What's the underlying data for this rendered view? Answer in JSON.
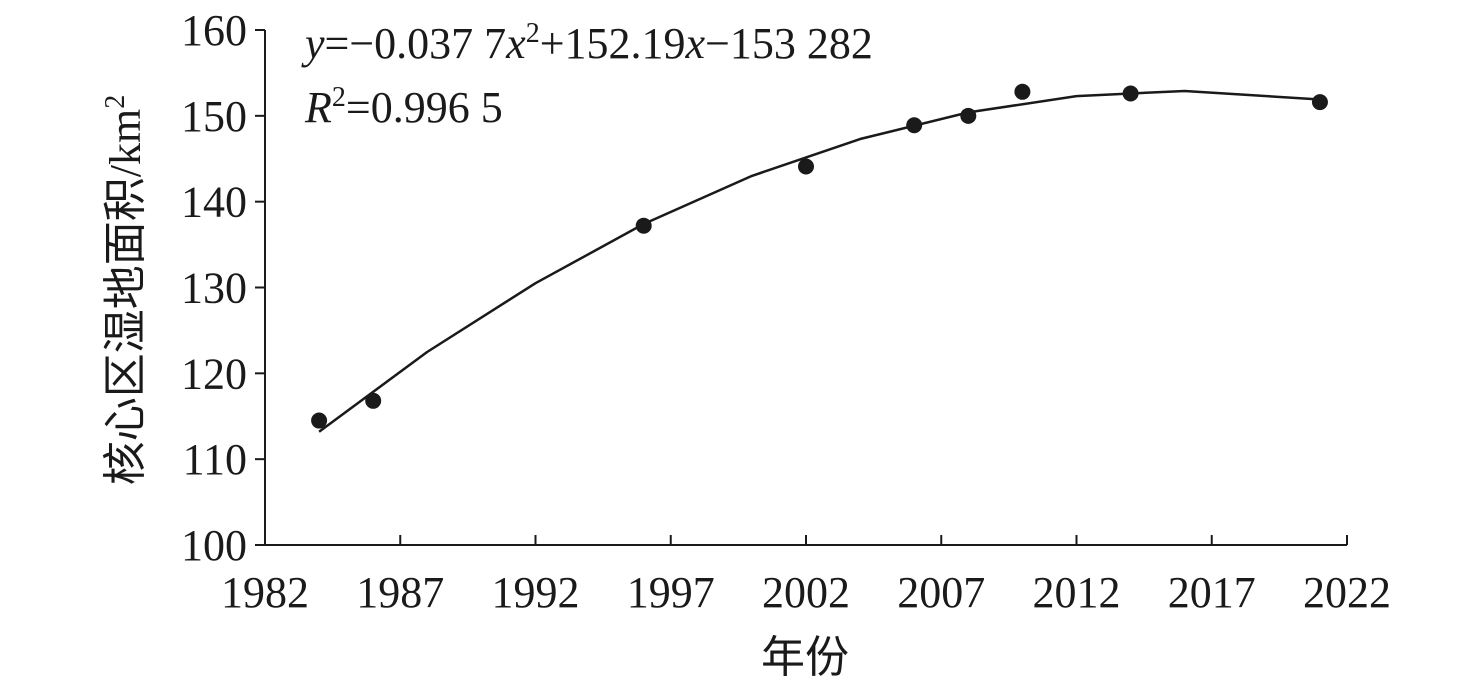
{
  "chart_data": {
    "type": "scatter",
    "xlabel": "年份",
    "ylabel": [
      "核心区湿地面积/km",
      "2"
    ],
    "equation": [
      "y",
      "=−0.037 7",
      "x",
      "2",
      "+152.19",
      "x",
      "−153 282"
    ],
    "r_squared": [
      "R",
      "2",
      "=0.996 5"
    ],
    "x": [
      1984,
      1986,
      1996,
      2002,
      2006,
      2008,
      2010,
      2014,
      2021
    ],
    "values": [
      114.5,
      116.8,
      137.2,
      144.1,
      148.9,
      150.0,
      152.8,
      152.6,
      151.6
    ],
    "color": "#1a1a1a",
    "fit": {
      "x": [
        1984,
        1988,
        1992,
        1996,
        2000,
        2004,
        2008,
        2012,
        2016,
        2021
      ],
      "values": [
        113.2,
        122.5,
        130.5,
        137.4,
        143.0,
        147.3,
        150.4,
        152.3,
        152.9,
        151.9
      ]
    },
    "xlim": [
      1982,
      2022
    ],
    "xticks": [
      1982,
      1987,
      1992,
      1997,
      2002,
      2007,
      2012,
      2017,
      2022
    ],
    "ylim": [
      100,
      160
    ],
    "yticks": [
      100,
      110,
      120,
      130,
      140,
      150,
      160
    ]
  }
}
